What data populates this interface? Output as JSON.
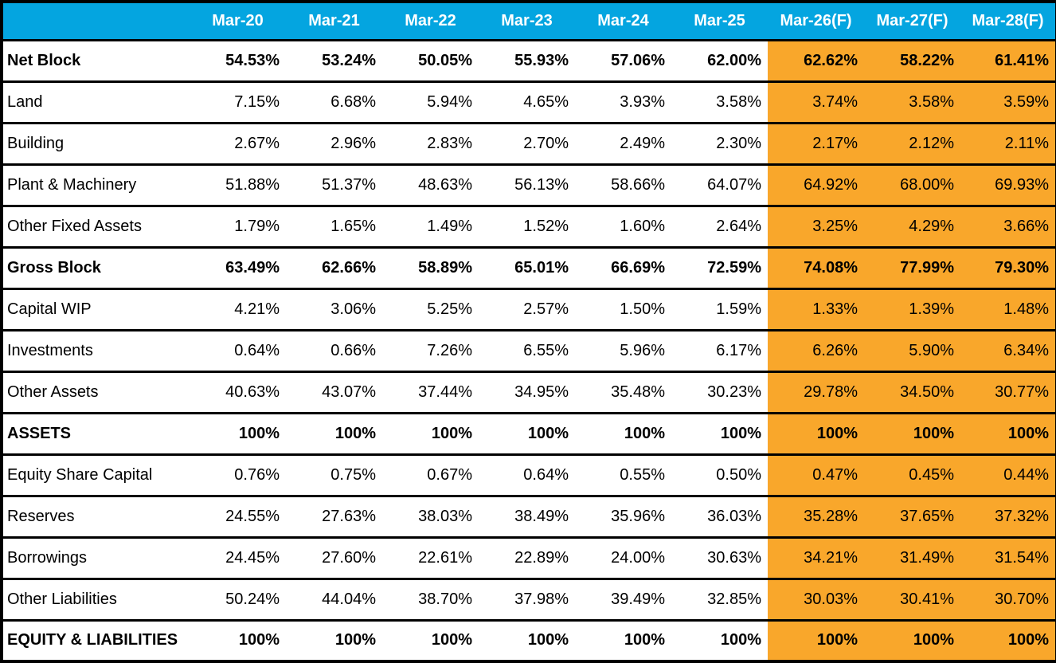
{
  "colors": {
    "header_bg": "#04a5e0",
    "header_text": "#ffffff",
    "forecast_bg": "#f9a72b",
    "border": "#000000",
    "text": "#000000"
  },
  "chart_data": {
    "type": "table",
    "corner_label": "",
    "columns": [
      "Mar-20",
      "Mar-21",
      "Mar-22",
      "Mar-23",
      "Mar-24",
      "Mar-25",
      "Mar-26(F)",
      "Mar-27(F)",
      "Mar-28(F)"
    ],
    "forecast_start_index": 6,
    "rows": [
      {
        "label": "Net Block",
        "bold": true,
        "values": [
          "54.53%",
          "53.24%",
          "50.05%",
          "55.93%",
          "57.06%",
          "62.00%",
          "62.62%",
          "58.22%",
          "61.41%"
        ]
      },
      {
        "label": "Land",
        "bold": false,
        "values": [
          "7.15%",
          "6.68%",
          "5.94%",
          "4.65%",
          "3.93%",
          "3.58%",
          "3.74%",
          "3.58%",
          "3.59%"
        ]
      },
      {
        "label": "Building",
        "bold": false,
        "values": [
          "2.67%",
          "2.96%",
          "2.83%",
          "2.70%",
          "2.49%",
          "2.30%",
          "2.17%",
          "2.12%",
          "2.11%"
        ]
      },
      {
        "label": "Plant & Machinery",
        "bold": false,
        "values": [
          "51.88%",
          "51.37%",
          "48.63%",
          "56.13%",
          "58.66%",
          "64.07%",
          "64.92%",
          "68.00%",
          "69.93%"
        ]
      },
      {
        "label": "Other Fixed Assets",
        "bold": false,
        "values": [
          "1.79%",
          "1.65%",
          "1.49%",
          "1.52%",
          "1.60%",
          "2.64%",
          "3.25%",
          "4.29%",
          "3.66%"
        ]
      },
      {
        "label": "Gross Block",
        "bold": true,
        "values": [
          "63.49%",
          "62.66%",
          "58.89%",
          "65.01%",
          "66.69%",
          "72.59%",
          "74.08%",
          "77.99%",
          "79.30%"
        ]
      },
      {
        "label": "Capital WIP",
        "bold": false,
        "values": [
          "4.21%",
          "3.06%",
          "5.25%",
          "2.57%",
          "1.50%",
          "1.59%",
          "1.33%",
          "1.39%",
          "1.48%"
        ]
      },
      {
        "label": "Investments",
        "bold": false,
        "values": [
          "0.64%",
          "0.66%",
          "7.26%",
          "6.55%",
          "5.96%",
          "6.17%",
          "6.26%",
          "5.90%",
          "6.34%"
        ]
      },
      {
        "label": "Other Assets",
        "bold": false,
        "values": [
          "40.63%",
          "43.07%",
          "37.44%",
          "34.95%",
          "35.48%",
          "30.23%",
          "29.78%",
          "34.50%",
          "30.77%"
        ]
      },
      {
        "label": "ASSETS",
        "bold": true,
        "values": [
          "100%",
          "100%",
          "100%",
          "100%",
          "100%",
          "100%",
          "100%",
          "100%",
          "100%"
        ]
      },
      {
        "label": "Equity Share Capital",
        "bold": false,
        "values": [
          "0.76%",
          "0.75%",
          "0.67%",
          "0.64%",
          "0.55%",
          "0.50%",
          "0.47%",
          "0.45%",
          "0.44%"
        ]
      },
      {
        "label": "Reserves",
        "bold": false,
        "values": [
          "24.55%",
          "27.63%",
          "38.03%",
          "38.49%",
          "35.96%",
          "36.03%",
          "35.28%",
          "37.65%",
          "37.32%"
        ]
      },
      {
        "label": "Borrowings",
        "bold": false,
        "values": [
          "24.45%",
          "27.60%",
          "22.61%",
          "22.89%",
          "24.00%",
          "30.63%",
          "34.21%",
          "31.49%",
          "31.54%"
        ]
      },
      {
        "label": "Other Liabilities",
        "bold": false,
        "values": [
          "50.24%",
          "44.04%",
          "38.70%",
          "37.98%",
          "39.49%",
          "32.85%",
          "30.03%",
          "30.41%",
          "30.70%"
        ]
      },
      {
        "label": "EQUITY & LIABILITIES",
        "bold": true,
        "values": [
          "100%",
          "100%",
          "100%",
          "100%",
          "100%",
          "100%",
          "100%",
          "100%",
          "100%"
        ]
      }
    ]
  }
}
